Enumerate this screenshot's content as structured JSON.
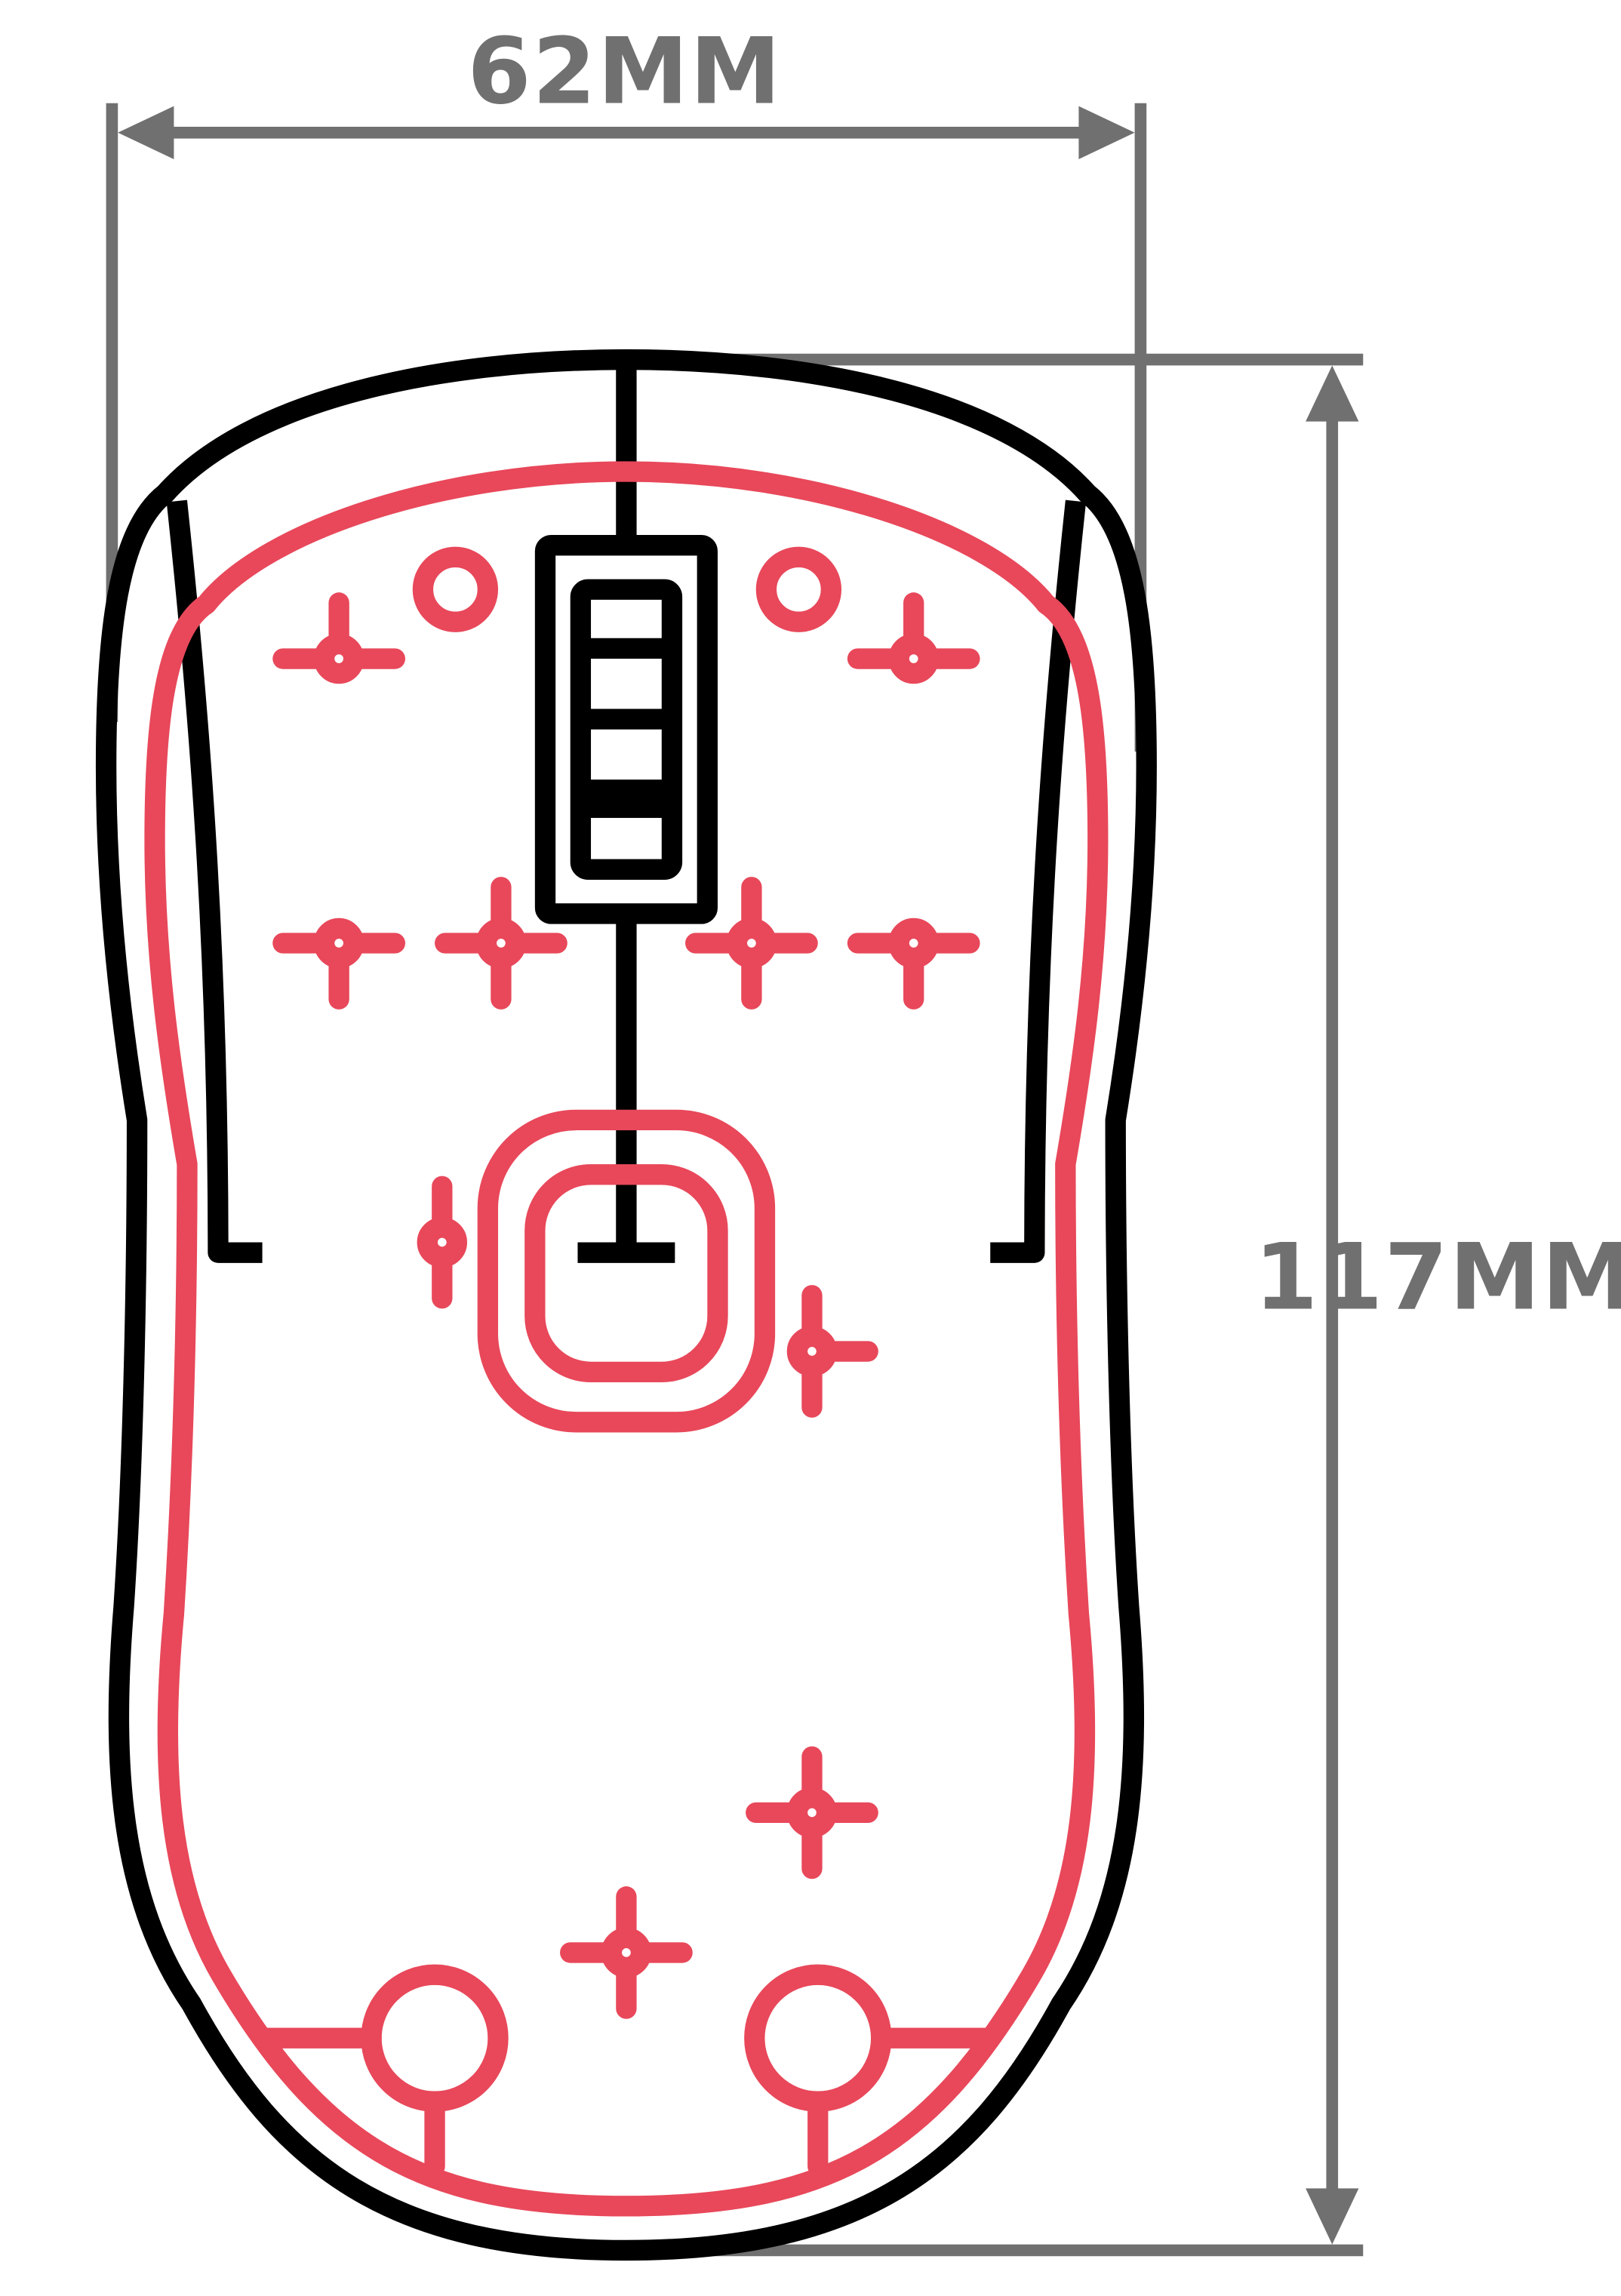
{
  "dimensions": {
    "width": {
      "value": 62,
      "unit": "MM",
      "label": "62MM"
    },
    "length": {
      "value": 117,
      "unit": "MM",
      "label": "117MM"
    }
  },
  "colors": {
    "dimension": "#707070",
    "outer_outline": "#000000",
    "inner_outline": "#e8485a",
    "background": "#ffffff"
  },
  "components": {
    "mounting_crosses": 10,
    "half_crosses": 2,
    "button_posts": 2,
    "feet": 2
  }
}
